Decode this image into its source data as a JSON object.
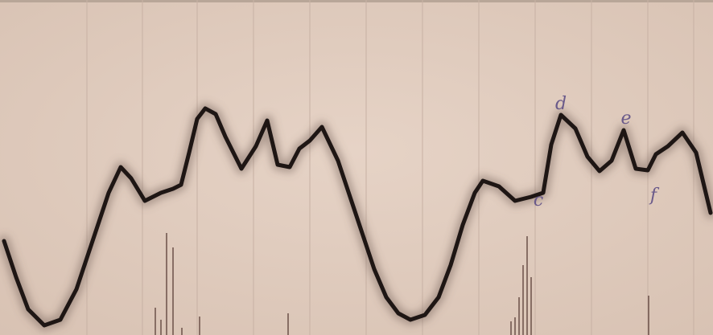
{
  "annotations": [
    "d",
    "e",
    "c",
    "f"
  ]
}
